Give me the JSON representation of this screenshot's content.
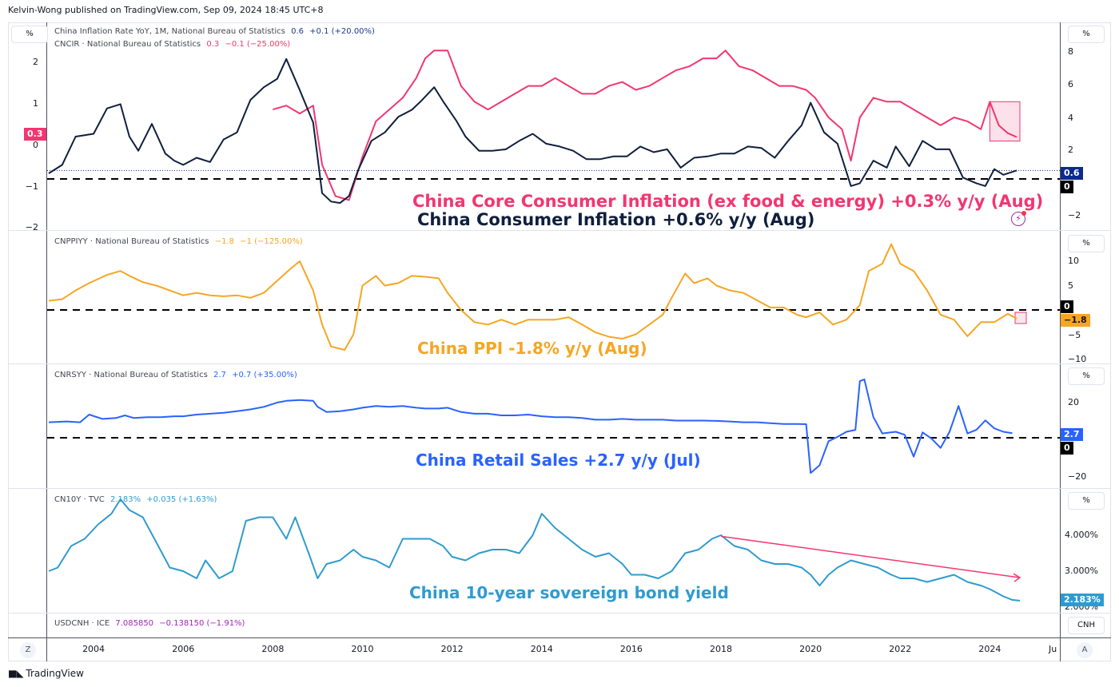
{
  "header": {
    "published": "Kelvin-Wong published on TradingView.com, Sep 09, 2024 18:45 UTC+8"
  },
  "footer": {
    "brand": "TradingView",
    "brand_icon": "tradingview-logo-icon"
  },
  "time_axis": {
    "labels": [
      "2004",
      "2006",
      "2008",
      "2010",
      "2012",
      "2014",
      "2016",
      "2018",
      "2020",
      "2022",
      "2024",
      "Ju"
    ],
    "left_button": "Z",
    "right_button": "A"
  },
  "panes": {
    "cpi": {
      "unit_left": "%",
      "unit_right": "%",
      "legend1": {
        "name": "China Inflation Rate YoY, 1M, National Bureau of Statistics",
        "value": "0.6",
        "change": "+0.1 (+20.00%)",
        "color": "#1e3a8a"
      },
      "legend2": {
        "name": "CNCIR · National Bureau of Statistics",
        "value": "0.3",
        "change": "−0.1 (−25.00%)",
        "color": "#f23670"
      },
      "left_ticks": [
        "2",
        "1",
        "0",
        "−1",
        "−2"
      ],
      "right_ticks": [
        "8",
        "6",
        "4",
        "2",
        "−2"
      ],
      "tag_left": "0.3",
      "tag_right_value": "0.6",
      "tag_right_zero": "0",
      "annotation_core": "China Core Consumer Inflation (ex food & energy) +0.3% y/y (Aug)",
      "annotation_cpi": "China Consumer Inflation +0.6% y/y (Aug)",
      "alert_icon": "lightning-alert-icon"
    },
    "ppi": {
      "unit": "%",
      "legend": {
        "name": "CNPPIYY · National Bureau of Statistics",
        "value": "−1.8",
        "change": "−1 (−125.00%)",
        "color": "#f5a623"
      },
      "right_ticks": [
        "10",
        "5",
        "−5",
        "−10"
      ],
      "tag_zero": "0",
      "tag_value": "−1.8",
      "annotation": "China PPI -1.8% y/y (Aug)"
    },
    "retail": {
      "unit": "%",
      "legend": {
        "name": "CNRSYY · National Bureau of Statistics",
        "value": "2.7",
        "change": "+0.7 (+35.00%)",
        "color": "#2962ff"
      },
      "right_ticks": [
        "20",
        "−20"
      ],
      "tag_value": "2.7",
      "tag_zero": "0",
      "annotation": "China Retail Sales +2.7 y/y (Jul)"
    },
    "bond": {
      "unit": "%",
      "legend": {
        "name": "CN10Y · TVC",
        "value": "2.183%",
        "change": "+0.035 (+1.63%)",
        "color": "#2e9bd0"
      },
      "right_ticks": [
        "4.000%",
        "3.000%",
        "2.000%"
      ],
      "tag_value": "2.183%",
      "annotation": "China 10-year sovereign bond yield"
    },
    "usdcnh": {
      "unit": "CNH",
      "legend": {
        "name": "USDCNH · ICE",
        "value": "7.085850",
        "change": "−0.138150 (−1.91%)",
        "color": "#9c27b0"
      }
    }
  },
  "chart_data": [
    {
      "type": "line",
      "title": "China Inflation Rate YoY (CPI) and Core CPI",
      "x_range": [
        2003.0,
        2024.67
      ],
      "series": [
        {
          "name": "China Inflation Rate YoY",
          "axis": "right",
          "ylim": [
            -2.6,
            9.0
          ],
          "x": [
            2003.0,
            2003.3,
            2003.6,
            2004.0,
            2004.3,
            2004.6,
            2004.8,
            2005.0,
            2005.3,
            2005.6,
            2005.8,
            2006.0,
            2006.3,
            2006.6,
            2006.9,
            2007.2,
            2007.5,
            2007.8,
            2008.1,
            2008.3,
            2008.6,
            2008.9,
            2009.1,
            2009.3,
            2009.5,
            2009.7,
            2009.9,
            2010.2,
            2010.5,
            2010.8,
            2011.1,
            2011.3,
            2011.6,
            2011.8,
            2012.1,
            2012.3,
            2012.6,
            2012.9,
            2013.2,
            2013.5,
            2013.8,
            2014.1,
            2014.4,
            2014.7,
            2015.0,
            2015.3,
            2015.6,
            2015.9,
            2016.2,
            2016.5,
            2016.8,
            2017.1,
            2017.4,
            2017.7,
            2018.0,
            2018.3,
            2018.6,
            2018.9,
            2019.2,
            2019.5,
            2019.8,
            2020.0,
            2020.3,
            2020.6,
            2020.9,
            2021.1,
            2021.4,
            2021.7,
            2021.9,
            2022.2,
            2022.5,
            2022.8,
            2023.1,
            2023.4,
            2023.7,
            2023.9,
            2024.1,
            2024.3,
            2024.6
          ],
          "values": [
            0.4,
            1.0,
            3.0,
            3.2,
            5.0,
            5.3,
            3.0,
            2.0,
            3.9,
            1.8,
            1.3,
            1.0,
            1.5,
            1.2,
            2.8,
            3.3,
            5.6,
            6.5,
            7.1,
            8.5,
            6.3,
            4.0,
            -1.0,
            -1.6,
            -1.7,
            -1.2,
            0.6,
            2.7,
            3.3,
            4.4,
            4.9,
            5.5,
            6.5,
            5.5,
            4.1,
            3.0,
            2.0,
            2.0,
            2.1,
            2.7,
            3.2,
            2.5,
            2.3,
            2.0,
            1.4,
            1.4,
            1.6,
            1.6,
            2.3,
            1.9,
            2.1,
            0.8,
            1.5,
            1.6,
            1.8,
            1.8,
            2.3,
            2.2,
            1.5,
            2.7,
            3.8,
            5.4,
            3.3,
            2.5,
            -0.5,
            -0.3,
            1.3,
            0.8,
            2.3,
            0.9,
            2.7,
            2.1,
            2.1,
            0.1,
            -0.3,
            -0.5,
            0.7,
            0.3,
            0.6
          ]
        },
        {
          "name": "China Core CPI (CNCIR)",
          "axis": "left",
          "ylim": [
            -2.0,
            2.6
          ],
          "x": [
            2008.0,
            2008.3,
            2008.6,
            2008.9,
            2009.1,
            2009.4,
            2009.7,
            2010.0,
            2010.3,
            2010.6,
            2010.9,
            2011.2,
            2011.4,
            2011.6,
            2011.9,
            2012.2,
            2012.5,
            2012.8,
            2013.1,
            2013.4,
            2013.7,
            2014.0,
            2014.3,
            2014.6,
            2014.9,
            2015.2,
            2015.5,
            2015.8,
            2016.1,
            2016.4,
            2016.7,
            2017.0,
            2017.3,
            2017.6,
            2017.9,
            2018.1,
            2018.4,
            2018.7,
            2019.0,
            2019.3,
            2019.6,
            2019.9,
            2020.1,
            2020.4,
            2020.7,
            2020.9,
            2021.1,
            2021.4,
            2021.7,
            2022.0,
            2022.3,
            2022.6,
            2022.9,
            2023.2,
            2023.5,
            2023.8,
            2024.0,
            2024.2,
            2024.4,
            2024.6
          ],
          "values": [
            1.0,
            1.1,
            0.9,
            1.1,
            -0.4,
            -1.2,
            -1.3,
            -0.2,
            0.7,
            1.0,
            1.3,
            1.8,
            2.3,
            2.5,
            2.5,
            1.6,
            1.2,
            1.0,
            1.2,
            1.4,
            1.6,
            1.6,
            1.8,
            1.6,
            1.4,
            1.4,
            1.6,
            1.7,
            1.5,
            1.6,
            1.8,
            2.0,
            2.1,
            2.3,
            2.3,
            2.5,
            2.1,
            2.0,
            1.8,
            1.6,
            1.6,
            1.5,
            1.3,
            0.8,
            0.5,
            -0.3,
            0.8,
            1.3,
            1.2,
            1.2,
            1.0,
            0.8,
            0.6,
            0.8,
            0.7,
            0.5,
            1.2,
            0.6,
            0.4,
            0.3
          ]
        }
      ],
      "reference_lines": [
        {
          "axis": "right",
          "value": 0,
          "style": "dashed"
        }
      ],
      "highlight_box": {
        "x": [
          2024.0,
          2024.67
        ],
        "axis": "left",
        "y": [
          0.2,
          1.2
        ]
      },
      "left_axis_ticks": [
        2,
        1,
        0,
        -1,
        -2
      ],
      "right_axis_ticks": [
        8,
        6,
        4,
        2,
        -2
      ]
    },
    {
      "type": "line",
      "title": "China PPI YoY (CNPPIYY)",
      "ylim": [
        -11,
        14
      ],
      "x": [
        2003.0,
        2003.3,
        2003.6,
        2003.9,
        2004.3,
        2004.6,
        2004.8,
        2005.1,
        2005.4,
        2005.7,
        2006.0,
        2006.3,
        2006.6,
        2006.9,
        2007.2,
        2007.5,
        2007.8,
        2008.1,
        2008.4,
        2008.6,
        2008.9,
        2009.1,
        2009.3,
        2009.6,
        2009.8,
        2010.0,
        2010.3,
        2010.5,
        2010.8,
        2011.1,
        2011.4,
        2011.7,
        2011.9,
        2012.2,
        2012.5,
        2012.8,
        2013.1,
        2013.4,
        2013.7,
        2014.0,
        2014.3,
        2014.6,
        2014.9,
        2015.2,
        2015.5,
        2015.8,
        2016.1,
        2016.4,
        2016.7,
        2016.9,
        2017.2,
        2017.4,
        2017.7,
        2017.9,
        2018.2,
        2018.5,
        2018.8,
        2019.1,
        2019.4,
        2019.7,
        2019.9,
        2020.2,
        2020.5,
        2020.8,
        2021.1,
        2021.3,
        2021.6,
        2021.8,
        2022.0,
        2022.3,
        2022.6,
        2022.9,
        2023.2,
        2023.5,
        2023.8,
        2024.1,
        2024.4,
        2024.6
      ],
      "values": [
        1.9,
        2.2,
        4.0,
        5.5,
        7.2,
        8.0,
        7.0,
        5.7,
        5.0,
        4.0,
        3.0,
        3.5,
        3.0,
        2.8,
        3.0,
        2.5,
        3.5,
        6.0,
        8.5,
        10.0,
        4.0,
        -3.0,
        -7.5,
        -8.2,
        -5.0,
        5.0,
        7.0,
        5.0,
        5.5,
        7.0,
        6.8,
        6.5,
        3.5,
        0.0,
        -2.5,
        -3.0,
        -2.0,
        -3.0,
        -2.0,
        -2.0,
        -2.0,
        -1.5,
        -3.0,
        -4.6,
        -5.5,
        -5.9,
        -5.0,
        -3.0,
        -1.0,
        2.5,
        7.5,
        5.5,
        6.5,
        5.0,
        4.0,
        3.5,
        2.0,
        0.5,
        0.5,
        -1.0,
        -1.5,
        -0.5,
        -3.0,
        -2.0,
        1.0,
        8.0,
        9.5,
        13.5,
        9.5,
        8.0,
        4.0,
        -1.0,
        -2.0,
        -5.4,
        -2.5,
        -2.5,
        -0.8,
        -1.8
      ],
      "reference_lines": [
        {
          "value": 0,
          "style": "dashed"
        }
      ],
      "right_axis_ticks": [
        10,
        5,
        -5,
        -10
      ]
    },
    {
      "type": "line",
      "title": "China Retail Sales YoY (CNRSYY)",
      "ylim": [
        -22,
        37
      ],
      "x": [
        2003.0,
        2003.4,
        2003.7,
        2003.9,
        2004.2,
        2004.5,
        2004.7,
        2004.9,
        2005.2,
        2005.5,
        2005.8,
        2006.0,
        2006.3,
        2006.6,
        2006.9,
        2007.2,
        2007.5,
        2007.8,
        2008.1,
        2008.3,
        2008.6,
        2008.9,
        2009.0,
        2009.2,
        2009.5,
        2009.8,
        2010.0,
        2010.3,
        2010.6,
        2010.9,
        2011.2,
        2011.4,
        2011.7,
        2011.9,
        2012.2,
        2012.5,
        2012.8,
        2013.1,
        2013.4,
        2013.7,
        2014.0,
        2014.3,
        2014.6,
        2014.9,
        2015.2,
        2015.5,
        2015.8,
        2016.1,
        2016.4,
        2016.7,
        2017.0,
        2017.3,
        2017.6,
        2017.9,
        2018.2,
        2018.5,
        2018.8,
        2019.1,
        2019.4,
        2019.7,
        2019.9,
        2020.0,
        2020.2,
        2020.4,
        2020.6,
        2020.8,
        2021.0,
        2021.1,
        2021.2,
        2021.4,
        2021.6,
        2021.9,
        2022.1,
        2022.3,
        2022.5,
        2022.7,
        2022.9,
        2023.1,
        2023.3,
        2023.5,
        2023.7,
        2023.9,
        2024.1,
        2024.3,
        2024.5
      ],
      "values": [
        9.0,
        9.5,
        9.0,
        13.5,
        11.0,
        11.5,
        13.0,
        11.5,
        12.0,
        12.0,
        12.5,
        12.5,
        13.5,
        14.0,
        14.5,
        15.5,
        16.5,
        18.0,
        20.5,
        21.5,
        22.0,
        21.5,
        18.0,
        15.0,
        15.5,
        16.5,
        17.5,
        18.5,
        18.0,
        18.5,
        17.5,
        17.0,
        17.0,
        17.5,
        15.0,
        14.0,
        14.0,
        13.0,
        13.0,
        13.5,
        12.5,
        12.0,
        12.0,
        11.5,
        10.5,
        10.5,
        11.0,
        10.5,
        10.5,
        10.5,
        10.0,
        10.0,
        10.0,
        9.8,
        9.5,
        9.0,
        9.0,
        8.5,
        8.0,
        8.0,
        7.9,
        -20.5,
        -16.0,
        -2.0,
        0.5,
        3.5,
        4.6,
        33.0,
        34.0,
        12.0,
        2.5,
        3.5,
        1.7,
        -11.0,
        3.1,
        -0.5,
        -5.9,
        3.5,
        18.5,
        2.5,
        4.6,
        10.1,
        5.5,
        3.5,
        2.7
      ],
      "reference_lines": [
        {
          "value": 0,
          "style": "dashed"
        }
      ],
      "right_axis_ticks": [
        20,
        -20
      ]
    },
    {
      "type": "line",
      "title": "China 10-year sovereign bond yield (CN10Y)",
      "ylim": [
        1.9,
        5.2
      ],
      "x": [
        2003.0,
        2003.2,
        2003.5,
        2003.8,
        2004.1,
        2004.4,
        2004.6,
        2004.8,
        2005.1,
        2005.4,
        2005.7,
        2006.0,
        2006.3,
        2006.5,
        2006.8,
        2007.1,
        2007.4,
        2007.7,
        2008.0,
        2008.3,
        2008.5,
        2008.8,
        2009.0,
        2009.2,
        2009.5,
        2009.8,
        2010.0,
        2010.3,
        2010.6,
        2010.9,
        2011.2,
        2011.5,
        2011.8,
        2012.0,
        2012.3,
        2012.6,
        2012.9,
        2013.2,
        2013.5,
        2013.8,
        2014.0,
        2014.3,
        2014.6,
        2014.9,
        2015.2,
        2015.5,
        2015.8,
        2016.0,
        2016.3,
        2016.6,
        2016.9,
        2017.2,
        2017.5,
        2017.8,
        2018.0,
        2018.3,
        2018.6,
        2018.9,
        2019.2,
        2019.5,
        2019.8,
        2020.0,
        2020.2,
        2020.4,
        2020.6,
        2020.9,
        2021.2,
        2021.5,
        2021.8,
        2022.0,
        2022.3,
        2022.6,
        2022.9,
        2023.2,
        2023.5,
        2023.8,
        2024.0,
        2024.3,
        2024.5,
        2024.67
      ],
      "values": [
        3.0,
        3.1,
        3.7,
        3.9,
        4.3,
        4.6,
        5.0,
        4.7,
        4.5,
        3.8,
        3.1,
        3.0,
        2.8,
        3.3,
        2.8,
        3.0,
        4.4,
        4.5,
        4.5,
        3.9,
        4.5,
        3.5,
        2.8,
        3.2,
        3.3,
        3.6,
        3.4,
        3.3,
        3.1,
        3.9,
        3.9,
        3.9,
        3.7,
        3.4,
        3.3,
        3.5,
        3.6,
        3.6,
        3.5,
        4.0,
        4.6,
        4.2,
        3.9,
        3.6,
        3.4,
        3.5,
        3.2,
        2.9,
        2.9,
        2.8,
        3.0,
        3.5,
        3.6,
        3.9,
        4.0,
        3.7,
        3.6,
        3.3,
        3.2,
        3.2,
        3.1,
        2.9,
        2.6,
        2.9,
        3.1,
        3.3,
        3.2,
        3.1,
        2.9,
        2.8,
        2.8,
        2.7,
        2.8,
        2.9,
        2.7,
        2.6,
        2.5,
        2.3,
        2.2,
        2.18
      ],
      "trendline": {
        "from": [
          2018.0,
          3.97
        ],
        "to": [
          2024.67,
          2.82
        ],
        "color": "#f23670",
        "arrow": true
      },
      "right_axis_ticks": [
        "4.000%",
        "3.000%",
        "2.000%"
      ]
    }
  ]
}
